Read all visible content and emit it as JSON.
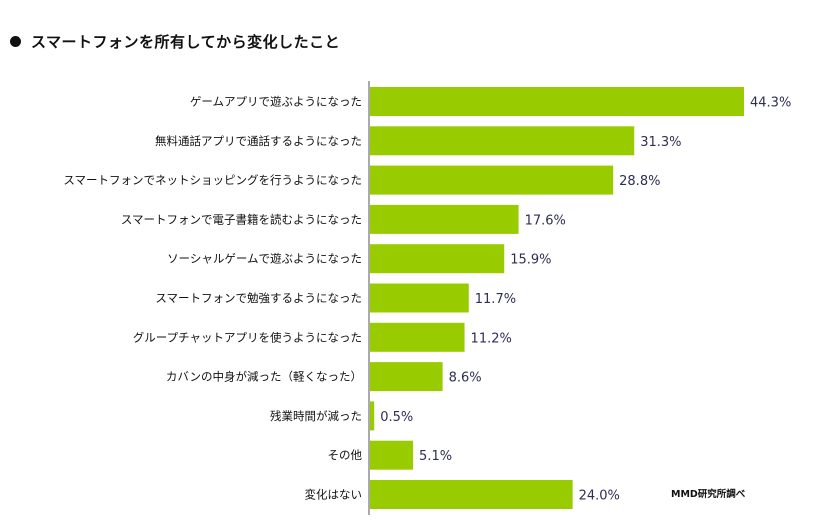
{
  "header": {
    "title": "スマートフォンを所有してから変化したこと"
  },
  "source": "MMD研究所調べ",
  "colors": {
    "bar": "#99cc00",
    "value_text": "#2f2e54"
  },
  "chart_data": {
    "type": "bar",
    "orientation": "horizontal",
    "title": "スマートフォンを所有してから変化したこと",
    "categories": [
      "ゲームアプリで遊ぶようになった",
      "無料通話アプリで通話するようになった",
      "スマートフォンでネットショッピングを行うようになった",
      "スマートフォンで電子書籍を読むようになった",
      "ソーシャルゲームで遊ぶようになった",
      "スマートフォンで勉強するようになった",
      "グループチャットアプリを使うようになった",
      "カバンの中身が減った（軽くなった）",
      "残業時間が減った",
      "その他",
      "変化はない"
    ],
    "values": [
      44.3,
      31.3,
      28.8,
      17.6,
      15.9,
      11.7,
      11.2,
      8.6,
      0.5,
      5.1,
      24.0
    ],
    "value_labels": [
      "44.3%",
      "31.3%",
      "28.8%",
      "17.6%",
      "15.9%",
      "11.7%",
      "11.2%",
      "8.6%",
      "0.5%",
      "5.1%",
      "24.0%"
    ],
    "xlim": [
      0,
      44.3
    ],
    "unit": "%",
    "grid": false,
    "legend": "none"
  }
}
